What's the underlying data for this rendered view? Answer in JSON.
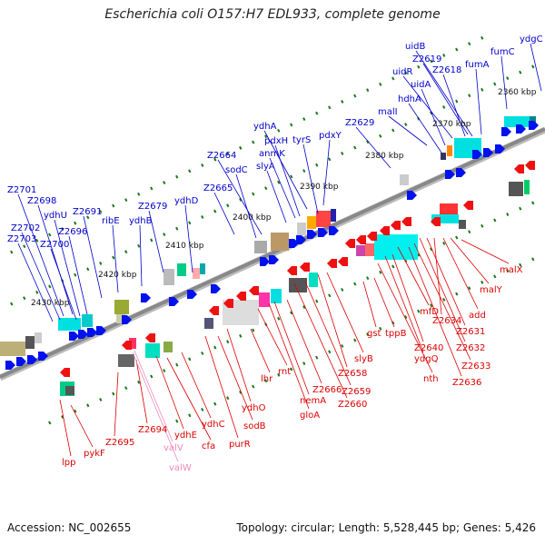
{
  "title": "Escherichia coli O157:H7 EDL933, complete genome",
  "footer": {
    "accession": "Accession: NC_002655",
    "summary": "Topology: circular; Length: 5,528,445 bp; Genes: 5,426"
  },
  "colors": {
    "forward_label": "#0000cc",
    "reverse_label": "#dd0000",
    "trna_label": "#ee88bb",
    "backbone": "#888888",
    "tick": "#1a7a1a"
  },
  "axis_labels": [
    "2360 kbp",
    "2370 kbp",
    "2380 kbp",
    "2390 kbp",
    "2400 kbp",
    "2410 kbp",
    "2420 kbp",
    "2430 kbp"
  ],
  "forward_labels": [
    "ydgC",
    "uidB",
    "Z2619",
    "fumC",
    "Z2618",
    "uidR",
    "fumA",
    "uidA",
    "hdhA",
    "malI",
    "Z2629",
    "ydhA",
    "pdxH",
    "tyrS",
    "pdxY",
    "anmK",
    "slyA",
    "Z2664",
    "sodC",
    "Z2665",
    "ydhD",
    "Z2679",
    "ydhB",
    "ribE",
    "Z2691",
    "Z2701",
    "Z2698",
    "ydhU",
    "Z2696",
    "Z2702",
    "Z2703",
    "Z2700"
  ],
  "reverse_labels": [
    "malX",
    "malY",
    "add",
    "Z2634",
    "Z2631",
    "Z2632",
    "Z2633",
    "Z2636",
    "mfD",
    "Z2640",
    "ydgQ",
    "nth",
    "gst",
    "tppB",
    "slyB",
    "Z2658",
    "Z2659",
    "Z2660",
    "Z2666",
    "nemA",
    "gloA",
    "rnt",
    "lhr",
    "ydhO",
    "sodB",
    "purR",
    "ydhC",
    "cfa",
    "ydhE",
    "Z2694",
    "Z2695",
    "pykF",
    "lpp"
  ],
  "trna_labels": [
    "valV",
    "valW"
  ]
}
